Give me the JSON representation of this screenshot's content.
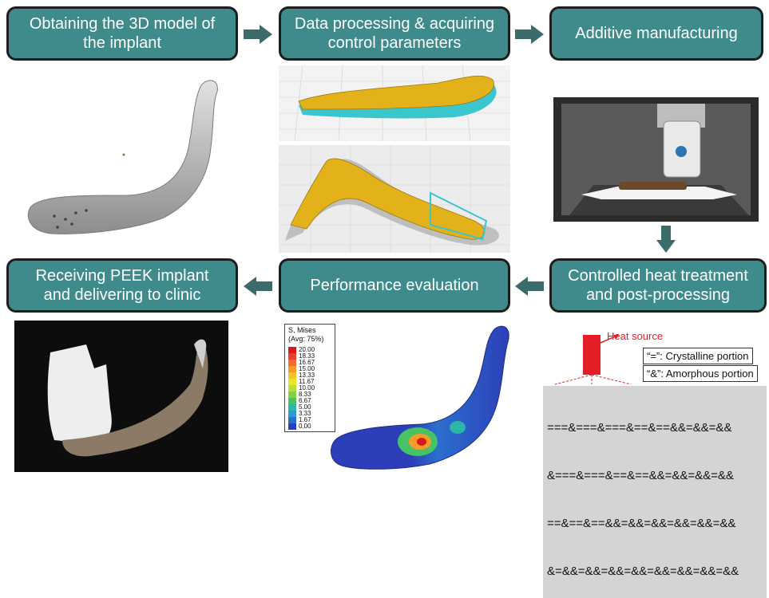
{
  "steps": {
    "obtain_model": "Obtaining the 3D model of\nthe implant",
    "data_processing": "Data processing & acquiring\ncontrol parameters",
    "additive_manufacturing": "Additive manufacturing",
    "heat_treatment": "Controlled heat treatment\nand post-processing",
    "performance_evaluation": "Performance evaluation",
    "receiving_implant": "Receiving PEEK implant\nand delivering to clinic"
  },
  "stress_legend": {
    "title": "S, Mises\n(Avg: 75%)",
    "values": [
      "20.00",
      "18.33",
      "16.67",
      "15.00",
      "13.33",
      "11.67",
      "10.00",
      "8.33",
      "6.67",
      "5.00",
      "3.33",
      "1.67",
      "0.00"
    ],
    "colors": [
      "#d7191c",
      "#e8402b",
      "#f26b2b",
      "#f79a2b",
      "#f5c527",
      "#e6e62a",
      "#b7e03a",
      "#7fd34a",
      "#46c464",
      "#2cb5a8",
      "#2a9bd5",
      "#2b6fce",
      "#2c3fb8"
    ]
  },
  "heat_diagram": {
    "heat_source": "Heat source",
    "crystalline_label": "“=”: Crystalline portion",
    "amorphous_label": "“&”: Amorphous portion",
    "pattern_rows": [
      "===&===&===&==&==&&=&&=&&",
      "&===&===&==&==&&=&&=&&=&&",
      "==&==&==&&=&&=&&=&&=&&=&&",
      "&=&&=&&=&&=&&=&&=&&=&&=&&"
    ],
    "accent_color": "#e41e26"
  },
  "colors": {
    "step_fill": "#3f8b8b",
    "arrow": "#3c6b6b"
  }
}
